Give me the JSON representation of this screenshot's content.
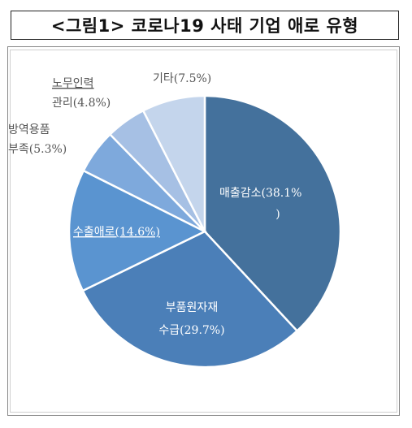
{
  "title": "<그림1> 코로나19 사태 기업 애로 유형",
  "chart_data": {
    "type": "pie",
    "title": "<그림1> 코로나19 사태 기업 애로 유형",
    "slices": [
      {
        "label_lines": [
          "매출감소(38.1%",
          ")"
        ],
        "value": 38.1,
        "color": "#44719c",
        "label_color": "#ffffff"
      },
      {
        "label_lines": [
          "부품원자재",
          "수급(29.7%)"
        ],
        "value": 29.7,
        "color": "#4b7fb8",
        "label_color": "#ffffff"
      },
      {
        "label_lines": [
          "수출애로(14.6%)"
        ],
        "value": 14.6,
        "color": "#5a94d0",
        "label_color": "#ffffff"
      },
      {
        "label_lines": [
          "방역용품",
          "부족(5.3%)"
        ],
        "value": 5.3,
        "color": "#7ea9dc",
        "label_color": "#555555"
      },
      {
        "label_lines": [
          "노무인력",
          "관리(4.8%)"
        ],
        "value": 4.8,
        "color": "#a6c0e4",
        "label_color": "#555555"
      },
      {
        "label_lines": [
          "기타(7.5%)"
        ],
        "value": 7.5,
        "color": "#c4d5ec",
        "label_color": "#555555"
      }
    ]
  }
}
